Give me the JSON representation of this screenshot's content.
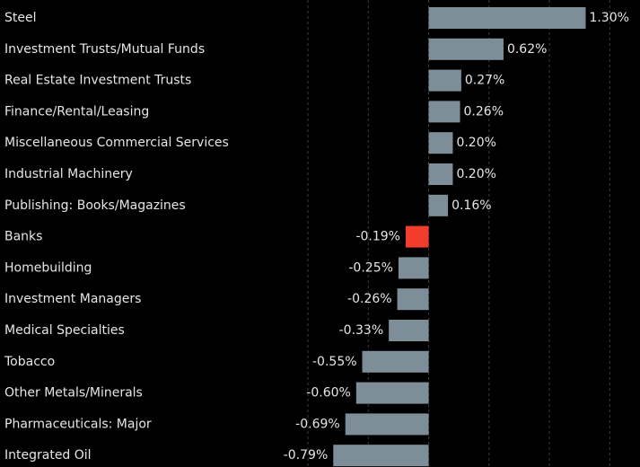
{
  "chart_data": {
    "type": "hbar",
    "categories": [
      "Steel",
      "Investment Trusts/Mutual Funds",
      "Real Estate Investment Trusts",
      "Finance/Rental/Leasing",
      "Miscellaneous Commercial Services",
      "Industrial Machinery",
      "Publishing: Books/Magazines",
      "Banks",
      "Homebuilding",
      "Investment Managers",
      "Medical Specialties",
      "Tobacco",
      "Other Metals/Minerals",
      "Pharmaceuticals: Major",
      "Integrated Oil"
    ],
    "values": [
      1.3,
      0.62,
      0.27,
      0.26,
      0.2,
      0.2,
      0.16,
      -0.19,
      -0.25,
      -0.26,
      -0.33,
      -0.55,
      -0.6,
      -0.69,
      -0.79
    ],
    "value_labels": [
      "1.30%",
      "0.62%",
      "0.27%",
      "0.26%",
      "0.20%",
      "0.20%",
      "0.16%",
      "-0.19%",
      "-0.25%",
      "-0.26%",
      "-0.33%",
      "-0.55%",
      "-0.60%",
      "-0.69%",
      "-0.79%"
    ],
    "colors": [
      "#7d8e99",
      "#7d8e99",
      "#7d8e99",
      "#7d8e99",
      "#7d8e99",
      "#7d8e99",
      "#7d8e99",
      "#f23d2e",
      "#7d8e99",
      "#7d8e99",
      "#7d8e99",
      "#7d8e99",
      "#7d8e99",
      "#7d8e99",
      "#7d8e99"
    ],
    "xlim": [
      -1,
      1.75
    ],
    "xticks": [
      -1,
      -0.5,
      0,
      0.5,
      1,
      1.5
    ],
    "grid": true
  }
}
